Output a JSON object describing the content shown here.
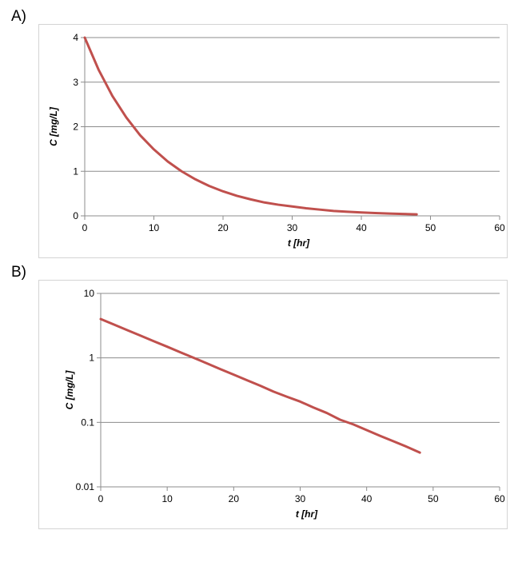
{
  "chart_data": [
    {
      "panel_label": "A)",
      "type": "line",
      "title": "",
      "xlabel": "t [hr]",
      "ylabel": "C [mg/L]",
      "xlim": [
        0,
        60
      ],
      "ylim": [
        0,
        4
      ],
      "y_scale": "linear",
      "xticks": [
        "0",
        "10",
        "20",
        "30",
        "40",
        "50",
        "60"
      ],
      "yticks": [
        "0",
        "1",
        "2",
        "3",
        "4"
      ],
      "grid": "horizontal",
      "legend": "none",
      "series": [
        {
          "color": "#c0504d",
          "x": [
            0,
            2,
            4,
            6,
            8,
            10,
            12,
            14,
            16,
            18,
            20,
            22,
            24,
            26,
            28,
            30,
            32,
            34,
            36,
            38,
            40,
            42,
            44,
            46,
            48
          ],
          "y": [
            4.0,
            3.28,
            2.69,
            2.21,
            1.81,
            1.49,
            1.22,
            1.0,
            0.82,
            0.67,
            0.55,
            0.45,
            0.37,
            0.3,
            0.25,
            0.21,
            0.17,
            0.14,
            0.11,
            0.093,
            0.076,
            0.062,
            0.051,
            0.042,
            0.034
          ]
        }
      ]
    },
    {
      "panel_label": "B)",
      "type": "line",
      "title": "",
      "xlabel": "t [hr]",
      "ylabel": "C [mg/L]",
      "xlim": [
        0,
        60
      ],
      "ylim": [
        0.01,
        10
      ],
      "y_scale": "log",
      "xticks": [
        "0",
        "10",
        "20",
        "30",
        "40",
        "50",
        "60"
      ],
      "yticks": [
        "0.01",
        "0.1",
        "1",
        "10"
      ],
      "grid": "horizontal",
      "legend": "none",
      "series": [
        {
          "color": "#c0504d",
          "x": [
            0,
            2,
            4,
            6,
            8,
            10,
            12,
            14,
            16,
            18,
            20,
            22,
            24,
            26,
            28,
            30,
            32,
            34,
            36,
            38,
            40,
            42,
            44,
            46,
            48
          ],
          "y": [
            4.0,
            3.28,
            2.69,
            2.21,
            1.81,
            1.49,
            1.22,
            1.0,
            0.82,
            0.67,
            0.55,
            0.45,
            0.37,
            0.3,
            0.25,
            0.21,
            0.17,
            0.14,
            0.11,
            0.093,
            0.076,
            0.062,
            0.051,
            0.042,
            0.034
          ]
        }
      ]
    }
  ]
}
